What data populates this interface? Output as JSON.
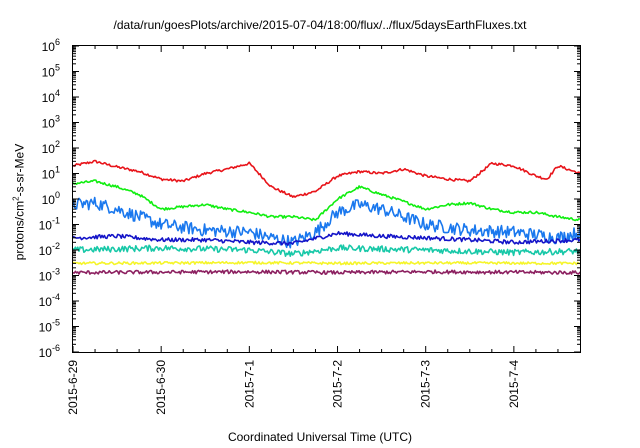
{
  "chart_data": {
    "type": "line",
    "title": "/data/run/goesPlots/archive/2015-07-04/18:00/flux/../flux/5daysEarthFluxes.txt",
    "xlabel": "Coordinated Universal Time (UTC)",
    "ylabel": "protons/cm²-s-sr-MeV",
    "ylabel_parts": {
      "prefix": "protons/cm",
      "sup": "2",
      "suffix": "-s-sr-MeV"
    },
    "y_scale": "log",
    "ylim": [
      1e-06,
      1000000.0
    ],
    "xlim": [
      "2015-06-29T00:00",
      "2015-07-04T18:00"
    ],
    "x_ticks": [
      "2015-6-29",
      "2015-6-30",
      "2015-7-1",
      "2015-7-2",
      "2015-7-3",
      "2015-7-4"
    ],
    "y_ticks": [
      {
        "base": "10",
        "exp": "-6"
      },
      {
        "base": "10",
        "exp": "-5"
      },
      {
        "base": "10",
        "exp": "-4"
      },
      {
        "base": "10",
        "exp": "-3"
      },
      {
        "base": "10",
        "exp": "-2"
      },
      {
        "base": "10",
        "exp": "-1"
      },
      {
        "base": "10",
        "exp": "0"
      },
      {
        "base": "10",
        "exp": "1"
      },
      {
        "base": "10",
        "exp": "2"
      },
      {
        "base": "10",
        "exp": "3"
      },
      {
        "base": "10",
        "exp": "4"
      },
      {
        "base": "10",
        "exp": "5"
      },
      {
        "base": "10",
        "exp": "6"
      }
    ],
    "grid": false,
    "series": [
      {
        "color": "#e8141a",
        "noise": 0.05,
        "x": [
          "2015-06-29T00:00",
          "2015-06-29T06:00",
          "2015-06-29T12:00",
          "2015-06-29T18:00",
          "2015-06-30T00:00",
          "2015-06-30T06:00",
          "2015-06-30T12:00",
          "2015-06-30T18:00",
          "2015-07-01T00:00",
          "2015-07-01T06:00",
          "2015-07-01T12:00",
          "2015-07-01T18:00",
          "2015-07-02T00:00",
          "2015-07-02T06:00",
          "2015-07-02T12:00",
          "2015-07-02T18:00",
          "2015-07-03T00:00",
          "2015-07-03T06:00",
          "2015-07-03T12:00",
          "2015-07-03T18:00",
          "2015-07-04T00:00",
          "2015-07-04T06:00",
          "2015-07-04T09:00",
          "2015-07-04T12:00",
          "2015-07-04T18:00"
        ],
        "y": [
          20,
          30,
          18,
          12,
          6,
          5,
          10,
          15,
          25,
          3,
          1.2,
          2,
          8,
          12,
          10,
          15,
          8,
          6,
          5,
          25,
          20,
          8,
          6,
          20,
          10
        ]
      },
      {
        "color": "#11ee11",
        "noise": 0.05,
        "x": [
          "2015-06-29T00:00",
          "2015-06-29T06:00",
          "2015-06-29T12:00",
          "2015-06-29T18:00",
          "2015-06-30T00:00",
          "2015-06-30T06:00",
          "2015-06-30T12:00",
          "2015-06-30T18:00",
          "2015-07-01T00:00",
          "2015-07-01T06:00",
          "2015-07-01T12:00",
          "2015-07-01T18:00",
          "2015-07-02T00:00",
          "2015-07-02T06:00",
          "2015-07-02T12:00",
          "2015-07-02T18:00",
          "2015-07-03T00:00",
          "2015-07-03T06:00",
          "2015-07-03T12:00",
          "2015-07-03T18:00",
          "2015-07-04T00:00",
          "2015-07-04T06:00",
          "2015-07-04T12:00",
          "2015-07-04T18:00"
        ],
        "y": [
          4,
          5,
          3,
          1.5,
          0.4,
          0.5,
          0.6,
          0.4,
          0.3,
          0.2,
          0.2,
          0.15,
          1,
          3,
          1.5,
          0.8,
          0.4,
          0.6,
          0.7,
          0.4,
          0.3,
          0.3,
          0.2,
          0.15
        ]
      },
      {
        "color": "#1a78ee",
        "noise": 0.25,
        "x": [
          "2015-06-29T00:00",
          "2015-06-29T06:00",
          "2015-06-29T12:00",
          "2015-06-29T18:00",
          "2015-06-30T00:00",
          "2015-06-30T12:00",
          "2015-07-01T00:00",
          "2015-07-01T06:00",
          "2015-07-01T12:00",
          "2015-07-01T18:00",
          "2015-07-02T00:00",
          "2015-07-02T06:00",
          "2015-07-02T12:00",
          "2015-07-02T18:00",
          "2015-07-03T00:00",
          "2015-07-03T12:00",
          "2015-07-04T00:00",
          "2015-07-04T06:00",
          "2015-07-04T12:00",
          "2015-07-04T18:00"
        ],
        "y": [
          0.6,
          0.7,
          0.4,
          0.2,
          0.1,
          0.06,
          0.05,
          0.03,
          0.02,
          0.05,
          0.3,
          0.6,
          0.4,
          0.2,
          0.1,
          0.06,
          0.05,
          0.04,
          0.03,
          0.05
        ]
      },
      {
        "color": "#1414c8",
        "noise": 0.08,
        "x": [
          "2015-06-29T00:00",
          "2015-06-29T12:00",
          "2015-06-30T00:00",
          "2015-06-30T12:00",
          "2015-07-01T00:00",
          "2015-07-01T12:00",
          "2015-07-02T00:00",
          "2015-07-02T12:00",
          "2015-07-03T00:00",
          "2015-07-03T12:00",
          "2015-07-04T00:00",
          "2015-07-04T18:00"
        ],
        "y": [
          0.03,
          0.035,
          0.025,
          0.025,
          0.02,
          0.018,
          0.045,
          0.035,
          0.03,
          0.025,
          0.02,
          0.025
        ]
      },
      {
        "color": "#18c8a8",
        "noise": 0.12,
        "x": [
          "2015-06-29T00:00",
          "2015-06-30T00:00",
          "2015-07-01T00:00",
          "2015-07-01T12:00",
          "2015-07-02T00:00",
          "2015-07-03T00:00",
          "2015-07-04T00:00",
          "2015-07-04T18:00"
        ],
        "y": [
          0.01,
          0.012,
          0.01,
          0.007,
          0.012,
          0.01,
          0.008,
          0.009
        ]
      },
      {
        "color": "#f5f52a",
        "noise": 0.05,
        "x": [
          "2015-06-29T00:00",
          "2015-07-01T00:00",
          "2015-07-02T00:00",
          "2015-07-03T00:00",
          "2015-07-04T18:00"
        ],
        "y": [
          0.003,
          0.0032,
          0.003,
          0.0031,
          0.003
        ]
      },
      {
        "color": "#8c2060",
        "noise": 0.07,
        "x": [
          "2015-06-29T00:00",
          "2015-07-01T00:00",
          "2015-07-02T00:00",
          "2015-07-03T00:00",
          "2015-07-04T18:00"
        ],
        "y": [
          0.0013,
          0.0014,
          0.0013,
          0.0014,
          0.0013
        ]
      }
    ]
  }
}
